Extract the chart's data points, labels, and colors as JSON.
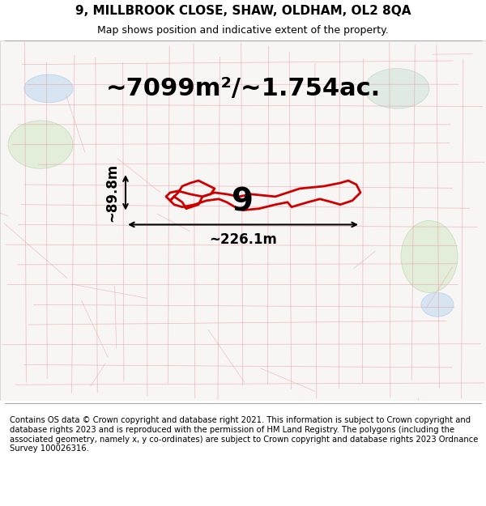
{
  "title": "9, MILLBROOK CLOSE, SHAW, OLDHAM, OL2 8QA",
  "subtitle": "Map shows position and indicative extent of the property.",
  "area_text": "~7099m²/~1.754ac.",
  "width_text": "~226.1m",
  "height_text": "~89.8m",
  "property_number": "9",
  "footer": "Contains OS data © Crown copyright and database right 2021. This information is subject to Crown copyright and database rights 2023 and is reproduced with the permission of HM Land Registry. The polygons (including the associated geometry, namely x, y co-ordinates) are subject to Crown copyright and database rights 2023 Ordnance Survey 100026316.",
  "map_bg": "#f5f0f0",
  "border_color": "#cccccc",
  "title_fontsize": 11,
  "subtitle_fontsize": 9,
  "area_fontsize": 22,
  "dim_fontsize": 12,
  "property_num_fontsize": 28,
  "footer_fontsize": 7.2
}
